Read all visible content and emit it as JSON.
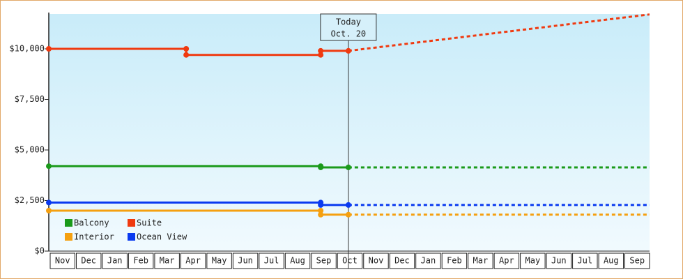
{
  "chart_data": {
    "type": "line",
    "categories": [
      "Nov",
      "Dec",
      "Jan",
      "Feb",
      "Mar",
      "Apr",
      "May",
      "Jun",
      "Jul",
      "Aug",
      "Sep",
      "Oct",
      "Nov",
      "Dec",
      "Jan",
      "Feb",
      "Mar",
      "Apr",
      "May",
      "Jun",
      "Jul",
      "Aug",
      "Sep"
    ],
    "xlim": [
      0,
      23
    ],
    "ylim": [
      0,
      11724
    ],
    "yticks": [
      {
        "value": 0,
        "label": "$0"
      },
      {
        "value": 2500,
        "label": "$2,500"
      },
      {
        "value": 5000,
        "label": "$5,000"
      },
      {
        "value": 7500,
        "label": "$7,500"
      },
      {
        "value": 10000,
        "label": "$10,000"
      }
    ],
    "today": {
      "x": 11.47,
      "label": [
        "Today",
        "Oct. 20"
      ]
    },
    "series": [
      {
        "name": "Balcony",
        "color": "#1a9a1a",
        "x": [
          0,
          10.41,
          10.41,
          11.47
        ],
        "values": [
          4200,
          4200,
          4140,
          4140
        ],
        "projected_x": [
          11.47,
          23
        ],
        "projected_values": [
          4140,
          4140
        ]
      },
      {
        "name": "Suite",
        "color": "#f03a10",
        "x": [
          0,
          5.26,
          5.26,
          10.41,
          10.41,
          11.47
        ],
        "values": [
          10000,
          10000,
          9700,
          9700,
          9900,
          9900
        ],
        "projected_x": [
          11.47,
          23
        ],
        "projected_values": [
          9900,
          11700
        ]
      },
      {
        "name": "Interior",
        "color": "#f5a010",
        "x": [
          0,
          10.41,
          10.41,
          11.47
        ],
        "values": [
          2000,
          2000,
          1800,
          1800
        ],
        "projected_x": [
          11.47,
          23
        ],
        "projected_values": [
          1800,
          1800
        ]
      },
      {
        "name": "Ocean View",
        "color": "#0a3af0",
        "x": [
          0,
          10.41,
          10.41,
          11.47
        ],
        "values": [
          2400,
          2400,
          2280,
          2280
        ],
        "projected_x": [
          11.47,
          23
        ],
        "projected_values": [
          2280,
          2280
        ]
      }
    ]
  }
}
